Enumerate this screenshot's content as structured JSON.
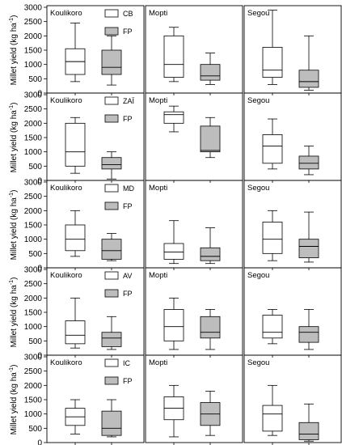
{
  "figure": {
    "ylabel": "Millet yield (kg ha",
    "ylabel_sup": "-1",
    "ylabel_close": ")"
  },
  "colors": {
    "treatment_box": "#ffffff",
    "fp_box": "#bdbdbd",
    "line": "#000000"
  },
  "chart_data": [
    {
      "type": "box",
      "y_ticks": [
        "0",
        "500",
        "1000",
        "1500",
        "2000",
        "2500",
        "3000"
      ],
      "ylim": [
        0,
        3000
      ],
      "legend": [
        "CB",
        "FP"
      ],
      "panels": [
        {
          "title": "Koulikoro",
          "boxes": [
            {
              "name": "CB",
              "whisker_low": 400,
              "q1": 650,
              "median": 1100,
              "q3": 1550,
              "whisker_high": 2450
            },
            {
              "name": "FP",
              "whisker_low": 280,
              "q1": 650,
              "median": 900,
              "q3": 1500,
              "whisker_high": 2000
            }
          ]
        },
        {
          "title": "Mopti",
          "boxes": [
            {
              "name": "CB",
              "whisker_low": 400,
              "q1": 550,
              "median": 1000,
              "q3": 2000,
              "whisker_high": 2300
            },
            {
              "name": "FP",
              "whisker_low": 300,
              "q1": 450,
              "median": 600,
              "q3": 1000,
              "whisker_high": 1400
            }
          ]
        },
        {
          "title": "Segou",
          "boxes": [
            {
              "name": "CB",
              "whisker_low": 300,
              "q1": 550,
              "median": 800,
              "q3": 1600,
              "whisker_high": 2900
            },
            {
              "name": "FP",
              "whisker_low": 100,
              "q1": 200,
              "median": 400,
              "q3": 800,
              "whisker_high": 2000
            }
          ]
        }
      ]
    },
    {
      "type": "box",
      "y_ticks": [
        "0",
        "500",
        "1000",
        "1500",
        "2000",
        "2500",
        "3000"
      ],
      "ylim": [
        0,
        3000
      ],
      "legend": [
        "ZAÏ",
        "FP"
      ],
      "panels": [
        {
          "title": "Koulikoro",
          "boxes": [
            {
              "name": "ZAÏ",
              "whisker_low": 250,
              "q1": 500,
              "median": 1000,
              "q3": 2000,
              "whisker_high": 2200
            },
            {
              "name": "FP",
              "whisker_low": 50,
              "q1": 400,
              "median": 550,
              "q3": 800,
              "whisker_high": 1000
            }
          ]
        },
        {
          "title": "Mopti",
          "boxes": [
            {
              "name": "ZAÏ",
              "whisker_low": 1700,
              "q1": 2000,
              "median": 2300,
              "q3": 2400,
              "whisker_high": 2600
            },
            {
              "name": "FP",
              "whisker_low": 800,
              "q1": 1000,
              "median": 1050,
              "q3": 1900,
              "whisker_high": 2200
            }
          ]
        },
        {
          "title": "Segou",
          "boxes": [
            {
              "name": "ZAÏ",
              "whisker_low": 400,
              "q1": 600,
              "median": 1200,
              "q3": 1600,
              "whisker_high": 2150
            },
            {
              "name": "FP",
              "whisker_low": 200,
              "q1": 400,
              "median": 600,
              "q3": 850,
              "whisker_high": 1200
            }
          ]
        }
      ]
    },
    {
      "type": "box",
      "y_ticks": [
        "0",
        "500",
        "1000",
        "1500",
        "2000",
        "2500",
        "3000"
      ],
      "ylim": [
        0,
        3000
      ],
      "legend": [
        "MD",
        "FP"
      ],
      "panels": [
        {
          "title": "Koulikoro",
          "boxes": [
            {
              "name": "MD",
              "whisker_low": 400,
              "q1": 600,
              "median": 1000,
              "q3": 1500,
              "whisker_high": 2000
            },
            {
              "name": "FP",
              "whisker_low": 250,
              "q1": 300,
              "median": 600,
              "q3": 1000,
              "whisker_high": 1200
            }
          ]
        },
        {
          "title": "Mopti",
          "boxes": [
            {
              "name": "MD",
              "whisker_low": 150,
              "q1": 300,
              "median": 550,
              "q3": 850,
              "whisker_high": 1650
            },
            {
              "name": "FP",
              "whisker_low": 150,
              "q1": 250,
              "median": 400,
              "q3": 700,
              "whisker_high": 1400
            }
          ]
        },
        {
          "title": "Segou",
          "boxes": [
            {
              "name": "MD",
              "whisker_low": 250,
              "q1": 500,
              "median": 1000,
              "q3": 1600,
              "whisker_high": 2000
            },
            {
              "name": "FP",
              "whisker_low": 200,
              "q1": 350,
              "median": 750,
              "q3": 1000,
              "whisker_high": 1950
            }
          ]
        }
      ]
    },
    {
      "type": "box",
      "y_ticks": [
        "0",
        "500",
        "1000",
        "1500",
        "2000",
        "2500",
        "3000"
      ],
      "ylim": [
        0,
        3000
      ],
      "legend": [
        "AV",
        "FP"
      ],
      "panels": [
        {
          "title": "Koulikoro",
          "boxes": [
            {
              "name": "AV",
              "whisker_low": 250,
              "q1": 400,
              "median": 700,
              "q3": 1200,
              "whisker_high": 2000
            },
            {
              "name": "FP",
              "whisker_low": 200,
              "q1": 300,
              "median": 600,
              "q3": 800,
              "whisker_high": 1350
            }
          ]
        },
        {
          "title": "Mopti",
          "boxes": [
            {
              "name": "AV",
              "whisker_low": 200,
              "q1": 500,
              "median": 1000,
              "q3": 1600,
              "whisker_high": 2000
            },
            {
              "name": "FP",
              "whisker_low": 200,
              "q1": 600,
              "median": 800,
              "q3": 1350,
              "whisker_high": 1600
            }
          ]
        },
        {
          "title": "Segou",
          "boxes": [
            {
              "name": "AV",
              "whisker_low": 400,
              "q1": 600,
              "median": 800,
              "q3": 1400,
              "whisker_high": 1600
            },
            {
              "name": "FP",
              "whisker_low": 200,
              "q1": 450,
              "median": 800,
              "q3": 1000,
              "whisker_high": 1600
            }
          ]
        }
      ]
    },
    {
      "type": "box",
      "y_ticks": [
        "0",
        "500",
        "1000",
        "1500",
        "2000",
        "2500",
        "3000"
      ],
      "ylim": [
        0,
        3000
      ],
      "legend": [
        "IC",
        "FP"
      ],
      "panels": [
        {
          "title": "Koulikoro",
          "boxes": [
            {
              "name": "IC",
              "whisker_low": 300,
              "q1": 600,
              "median": 900,
              "q3": 1200,
              "whisker_high": 1500
            },
            {
              "name": "FP",
              "whisker_low": 200,
              "q1": 250,
              "median": 500,
              "q3": 1100,
              "whisker_high": 1500
            }
          ]
        },
        {
          "title": "Mopti",
          "boxes": [
            {
              "name": "IC",
              "whisker_low": 200,
              "q1": 800,
              "median": 1200,
              "q3": 1600,
              "whisker_high": 2000
            },
            {
              "name": "FP",
              "whisker_low": 250,
              "q1": 600,
              "median": 1000,
              "q3": 1400,
              "whisker_high": 1800
            }
          ]
        },
        {
          "title": "Segou",
          "boxes": [
            {
              "name": "IC",
              "whisker_low": 250,
              "q1": 400,
              "median": 1000,
              "q3": 1300,
              "whisker_high": 2000
            },
            {
              "name": "FP",
              "whisker_low": 50,
              "q1": 100,
              "median": 300,
              "q3": 700,
              "whisker_high": 1350
            }
          ]
        }
      ]
    }
  ]
}
